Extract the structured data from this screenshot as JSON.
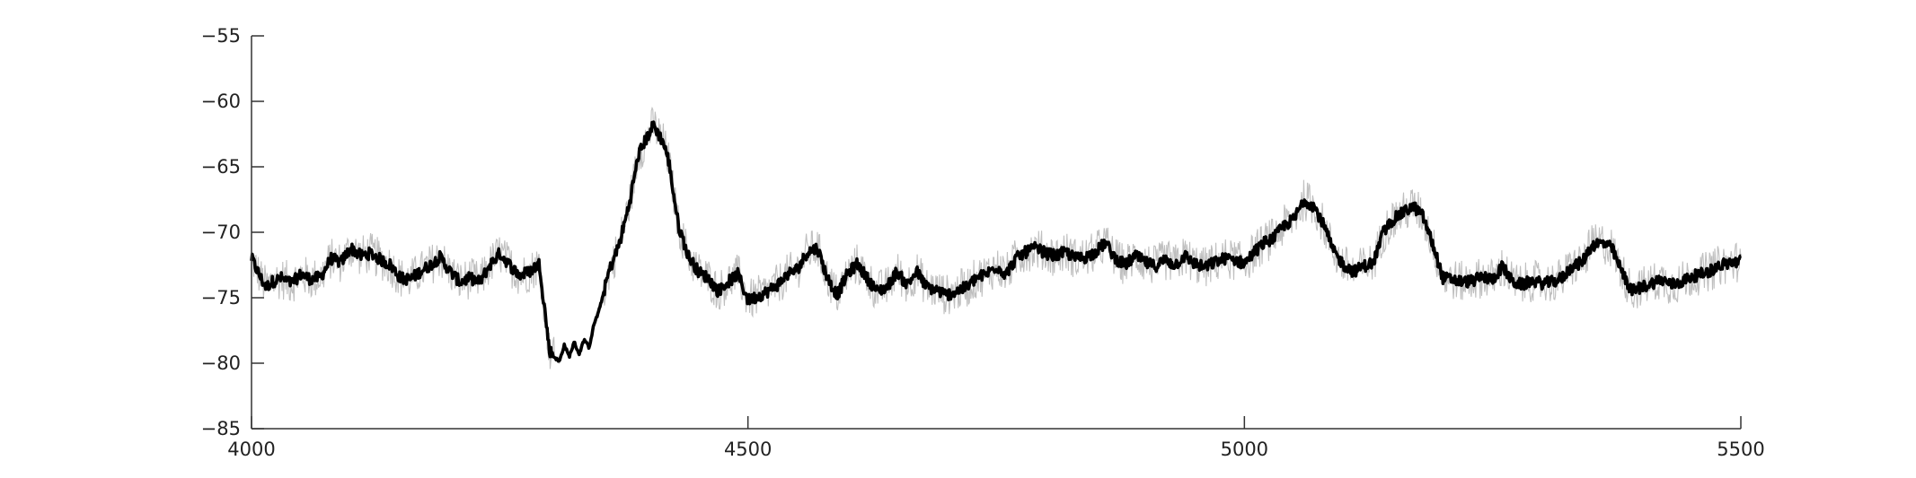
{
  "chart_data": {
    "type": "line",
    "title": "",
    "xlabel": "",
    "ylabel": "",
    "xlim": [
      4000,
      5500
    ],
    "ylim": [
      -85,
      -55
    ],
    "x_ticks": [
      4000,
      4500,
      5000,
      5500
    ],
    "x_tick_labels": [
      "4000",
      "4500",
      "5000",
      "5500"
    ],
    "y_ticks": [
      -55,
      -60,
      -65,
      -70,
      -75,
      -80,
      -85
    ],
    "y_tick_labels": [
      "−55",
      "−60",
      "−65",
      "−70",
      "−75",
      "−80",
      "−85"
    ],
    "grid": false,
    "legend": "none",
    "colors": {
      "main": "#000000",
      "band": "#bfbfbf",
      "axis": "#333333"
    },
    "series": [
      {
        "role": "mean-trace",
        "x": [
          4000,
          4005,
          4010,
          4015,
          4020,
          4030,
          4040,
          4050,
          4060,
          4070,
          4080,
          4090,
          4100,
          4110,
          4120,
          4130,
          4140,
          4150,
          4160,
          4170,
          4180,
          4190,
          4200,
          4210,
          4220,
          4230,
          4240,
          4250,
          4260,
          4270,
          4280,
          4290,
          4300,
          4305,
          4310,
          4315,
          4320,
          4325,
          4330,
          4335,
          4340,
          4345,
          4350,
          4355,
          4360,
          4370,
          4380,
          4390,
          4400,
          4405,
          4410,
          4415,
          4420,
          4430,
          4440,
          4450,
          4460,
          4470,
          4480,
          4490,
          4500,
          4510,
          4520,
          4530,
          4540,
          4550,
          4560,
          4570,
          4580,
          4590,
          4600,
          4610,
          4620,
          4630,
          4640,
          4650,
          4660,
          4670,
          4680,
          4690,
          4700,
          4710,
          4720,
          4730,
          4740,
          4750,
          4760,
          4770,
          4780,
          4790,
          4800,
          4810,
          4820,
          4830,
          4840,
          4850,
          4860,
          4870,
          4880,
          4890,
          4900,
          4910,
          4920,
          4930,
          4940,
          4950,
          4960,
          4970,
          4980,
          4990,
          5000,
          5010,
          5020,
          5030,
          5040,
          5050,
          5060,
          5070,
          5080,
          5090,
          5100,
          5110,
          5120,
          5130,
          5140,
          5150,
          5160,
          5170,
          5180,
          5190,
          5200,
          5210,
          5220,
          5230,
          5240,
          5250,
          5260,
          5270,
          5280,
          5290,
          5300,
          5310,
          5320,
          5330,
          5340,
          5350,
          5360,
          5370,
          5380,
          5390,
          5400,
          5410,
          5420,
          5430,
          5440,
          5450,
          5460,
          5470,
          5480,
          5490,
          5500
        ],
        "y": [
          -72,
          -72.8,
          -73.6,
          -74.2,
          -73.8,
          -73.5,
          -73.9,
          -73.2,
          -73.6,
          -73.4,
          -72,
          -72.3,
          -71.2,
          -71.8,
          -71.6,
          -72.1,
          -72.5,
          -73.5,
          -73.6,
          -73,
          -72.5,
          -71.9,
          -73,
          -73.8,
          -73.5,
          -73.8,
          -72.5,
          -71.6,
          -72.5,
          -73.3,
          -73,
          -72.4,
          -79,
          -79.5,
          -79.9,
          -78.6,
          -79.5,
          -78.4,
          -79.3,
          -78.2,
          -78.8,
          -77,
          -76,
          -74.5,
          -73,
          -71,
          -68,
          -64,
          -62.5,
          -61.8,
          -62.5,
          -63.2,
          -64.5,
          -69.5,
          -71.8,
          -73,
          -73.5,
          -74.5,
          -73.8,
          -73.2,
          -75.2,
          -74.9,
          -74.5,
          -74,
          -73.2,
          -72.8,
          -71.5,
          -71.2,
          -73.5,
          -74.8,
          -73.2,
          -72.4,
          -73.5,
          -74.5,
          -74.2,
          -73,
          -74,
          -73,
          -74.2,
          -74.4,
          -74.8,
          -74.5,
          -74.2,
          -73.5,
          -73.2,
          -72.6,
          -73.2,
          -72,
          -71.5,
          -71.2,
          -71.6,
          -71.8,
          -71.5,
          -72,
          -71.9,
          -71.5,
          -70.8,
          -72,
          -72.5,
          -71.8,
          -72.3,
          -72.6,
          -72.1,
          -72.5,
          -71.8,
          -72.4,
          -72.7,
          -72.3,
          -72,
          -72.1,
          -72.4,
          -71.5,
          -70.8,
          -70.4,
          -69.5,
          -69,
          -67.5,
          -68,
          -69.5,
          -71.5,
          -72.5,
          -73,
          -72.6,
          -72.3,
          -70,
          -69,
          -68.5,
          -68,
          -68.8,
          -71,
          -73.5,
          -73.6,
          -73.8,
          -73.7,
          -73.4,
          -73.6,
          -72.6,
          -73.8,
          -74,
          -73.7,
          -73.9,
          -73.8,
          -73.5,
          -72.6,
          -72.3,
          -71,
          -70.8,
          -71.2,
          -73,
          -74.5,
          -74.2,
          -73.9,
          -73.6,
          -74,
          -73.8,
          -73.4,
          -73.2,
          -72.9,
          -72.5,
          -72.3,
          -72.2
        ]
      }
    ]
  }
}
